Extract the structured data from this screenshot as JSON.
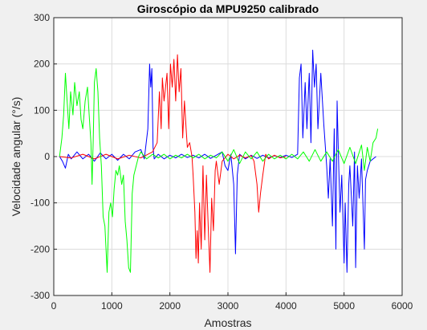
{
  "chart_data": {
    "type": "line",
    "title": "Giroscópio da MPU9250 calibrado",
    "xlabel": "Amostras",
    "ylabel": "Velocidade angular (°/s)",
    "xlim": [
      0,
      6000
    ],
    "ylim": [
      -300,
      300
    ],
    "xticks": [
      0,
      1000,
      2000,
      3000,
      4000,
      5000,
      6000
    ],
    "yticks": [
      -300,
      -200,
      -100,
      0,
      100,
      200,
      300
    ],
    "grid": true,
    "legend": "none",
    "series": [
      {
        "color": "#0000ff",
        "points": [
          [
            100,
            0
          ],
          [
            150,
            -10
          ],
          [
            200,
            -25
          ],
          [
            250,
            5
          ],
          [
            300,
            -5
          ],
          [
            400,
            10
          ],
          [
            500,
            -5
          ],
          [
            600,
            5
          ],
          [
            700,
            -10
          ],
          [
            800,
            8
          ],
          [
            900,
            -5
          ],
          [
            1000,
            5
          ],
          [
            1100,
            -8
          ],
          [
            1200,
            5
          ],
          [
            1300,
            -5
          ],
          [
            1400,
            10
          ],
          [
            1500,
            15
          ],
          [
            1560,
            -5
          ],
          [
            1620,
            60
          ],
          [
            1650,
            200
          ],
          [
            1670,
            150
          ],
          [
            1690,
            190
          ],
          [
            1710,
            20
          ],
          [
            1730,
            -5
          ],
          [
            1800,
            5
          ],
          [
            1900,
            -5
          ],
          [
            2000,
            3
          ],
          [
            2100,
            -3
          ],
          [
            2200,
            5
          ],
          [
            2300,
            -2
          ],
          [
            2400,
            3
          ],
          [
            2500,
            -3
          ],
          [
            2600,
            5
          ],
          [
            2700,
            -4
          ],
          [
            2800,
            3
          ],
          [
            2900,
            10
          ],
          [
            2950,
            -20
          ],
          [
            3000,
            -30
          ],
          [
            3050,
            5
          ],
          [
            3100,
            -60
          ],
          [
            3130,
            -210
          ],
          [
            3160,
            -40
          ],
          [
            3200,
            5
          ],
          [
            3300,
            -5
          ],
          [
            3400,
            3
          ],
          [
            3500,
            -4
          ],
          [
            3600,
            3
          ],
          [
            3700,
            -3
          ],
          [
            3800,
            2
          ],
          [
            3900,
            -2
          ],
          [
            4000,
            3
          ],
          [
            4100,
            -2
          ],
          [
            4200,
            5
          ],
          [
            4230,
            170
          ],
          [
            4260,
            200
          ],
          [
            4290,
            40
          ],
          [
            4330,
            160
          ],
          [
            4360,
            60
          ],
          [
            4400,
            180
          ],
          [
            4430,
            30
          ],
          [
            4460,
            230
          ],
          [
            4490,
            150
          ],
          [
            4520,
            200
          ],
          [
            4550,
            60
          ],
          [
            4600,
            180
          ],
          [
            4650,
            70
          ],
          [
            4700,
            -20
          ],
          [
            4730,
            -90
          ],
          [
            4760,
            -5
          ],
          [
            4800,
            -150
          ],
          [
            4830,
            60
          ],
          [
            4860,
            -200
          ],
          [
            4880,
            120
          ],
          [
            4900,
            20
          ],
          [
            4930,
            -120
          ],
          [
            4960,
            -40
          ],
          [
            5000,
            -230
          ],
          [
            5020,
            -100
          ],
          [
            5050,
            -250
          ],
          [
            5080,
            -60
          ],
          [
            5100,
            -20
          ],
          [
            5150,
            -150
          ],
          [
            5180,
            10
          ],
          [
            5200,
            -240
          ],
          [
            5230,
            -20
          ],
          [
            5260,
            -90
          ],
          [
            5300,
            -5
          ],
          [
            5350,
            -200
          ],
          [
            5370,
            -50
          ],
          [
            5400,
            -30
          ],
          [
            5450,
            -10
          ],
          [
            5500,
            -5
          ],
          [
            5550,
            0
          ]
        ]
      },
      {
        "color": "#ff0000",
        "points": [
          [
            100,
            0
          ],
          [
            300,
            -3
          ],
          [
            500,
            5
          ],
          [
            700,
            -5
          ],
          [
            900,
            5
          ],
          [
            1100,
            -5
          ],
          [
            1300,
            3
          ],
          [
            1500,
            -3
          ],
          [
            1700,
            10
          ],
          [
            1780,
            30
          ],
          [
            1820,
            140
          ],
          [
            1850,
            60
          ],
          [
            1870,
            170
          ],
          [
            1900,
            120
          ],
          [
            1950,
            180
          ],
          [
            1980,
            60
          ],
          [
            2010,
            200
          ],
          [
            2040,
            150
          ],
          [
            2070,
            210
          ],
          [
            2100,
            120
          ],
          [
            2130,
            220
          ],
          [
            2160,
            140
          ],
          [
            2190,
            190
          ],
          [
            2220,
            40
          ],
          [
            2250,
            120
          ],
          [
            2280,
            60
          ],
          [
            2300,
            20
          ],
          [
            2340,
            30
          ],
          [
            2380,
            0
          ],
          [
            2400,
            -40
          ],
          [
            2430,
            -120
          ],
          [
            2450,
            -220
          ],
          [
            2470,
            -160
          ],
          [
            2490,
            -230
          ],
          [
            2510,
            -100
          ],
          [
            2540,
            -200
          ],
          [
            2570,
            -20
          ],
          [
            2600,
            -180
          ],
          [
            2630,
            -40
          ],
          [
            2660,
            -150
          ],
          [
            2690,
            -250
          ],
          [
            2720,
            -90
          ],
          [
            2750,
            -160
          ],
          [
            2780,
            -30
          ],
          [
            2800,
            -10
          ],
          [
            2850,
            -60
          ],
          [
            2900,
            -10
          ],
          [
            3000,
            5
          ],
          [
            3100,
            -5
          ],
          [
            3200,
            3
          ],
          [
            3300,
            -3
          ],
          [
            3400,
            2
          ],
          [
            3450,
            -10
          ],
          [
            3500,
            -60
          ],
          [
            3530,
            -120
          ],
          [
            3560,
            -80
          ],
          [
            3600,
            -40
          ],
          [
            3650,
            5
          ],
          [
            3700,
            -5
          ],
          [
            3800,
            3
          ],
          [
            3900,
            -3
          ],
          [
            4000,
            0
          ]
        ]
      },
      {
        "color": "#00ff00",
        "points": [
          [
            100,
            0
          ],
          [
            140,
            40
          ],
          [
            170,
            90
          ],
          [
            200,
            180
          ],
          [
            230,
            120
          ],
          [
            260,
            60
          ],
          [
            290,
            140
          ],
          [
            330,
            90
          ],
          [
            360,
            160
          ],
          [
            400,
            110
          ],
          [
            440,
            140
          ],
          [
            470,
            80
          ],
          [
            500,
            60
          ],
          [
            540,
            120
          ],
          [
            580,
            150
          ],
          [
            610,
            90
          ],
          [
            640,
            30
          ],
          [
            660,
            -60
          ],
          [
            680,
            40
          ],
          [
            700,
            160
          ],
          [
            730,
            190
          ],
          [
            760,
            140
          ],
          [
            790,
            40
          ],
          [
            820,
            -20
          ],
          [
            850,
            -130
          ],
          [
            880,
            -150
          ],
          [
            900,
            -200
          ],
          [
            920,
            -250
          ],
          [
            950,
            -120
          ],
          [
            980,
            -100
          ],
          [
            1010,
            -130
          ],
          [
            1040,
            -70
          ],
          [
            1070,
            -30
          ],
          [
            1100,
            -40
          ],
          [
            1130,
            -20
          ],
          [
            1170,
            -60
          ],
          [
            1200,
            -40
          ],
          [
            1230,
            -140
          ],
          [
            1260,
            -180
          ],
          [
            1290,
            -240
          ],
          [
            1320,
            -250
          ],
          [
            1350,
            -80
          ],
          [
            1380,
            -40
          ],
          [
            1420,
            -20
          ],
          [
            1460,
            0
          ],
          [
            1500,
            10
          ],
          [
            1600,
            -5
          ],
          [
            1700,
            5
          ],
          [
            1800,
            -3
          ],
          [
            1900,
            5
          ],
          [
            2000,
            -5
          ],
          [
            2100,
            3
          ],
          [
            2200,
            -3
          ],
          [
            2300,
            5
          ],
          [
            2400,
            -3
          ],
          [
            2500,
            5
          ],
          [
            2600,
            -5
          ],
          [
            2700,
            3
          ],
          [
            2800,
            -3
          ],
          [
            2900,
            10
          ],
          [
            3000,
            -10
          ],
          [
            3100,
            15
          ],
          [
            3200,
            -15
          ],
          [
            3300,
            10
          ],
          [
            3400,
            -5
          ],
          [
            3500,
            10
          ],
          [
            3600,
            -10
          ],
          [
            3700,
            5
          ],
          [
            3800,
            -5
          ],
          [
            3900,
            3
          ],
          [
            4000,
            -5
          ],
          [
            4100,
            5
          ],
          [
            4200,
            -5
          ],
          [
            4300,
            10
          ],
          [
            4400,
            -10
          ],
          [
            4500,
            15
          ],
          [
            4600,
            -10
          ],
          [
            4700,
            10
          ],
          [
            4800,
            -10
          ],
          [
            4900,
            15
          ],
          [
            5000,
            -15
          ],
          [
            5100,
            20
          ],
          [
            5200,
            -15
          ],
          [
            5300,
            25
          ],
          [
            5350,
            -30
          ],
          [
            5400,
            20
          ],
          [
            5450,
            -10
          ],
          [
            5500,
            30
          ],
          [
            5550,
            40
          ],
          [
            5580,
            60
          ]
        ]
      }
    ]
  }
}
